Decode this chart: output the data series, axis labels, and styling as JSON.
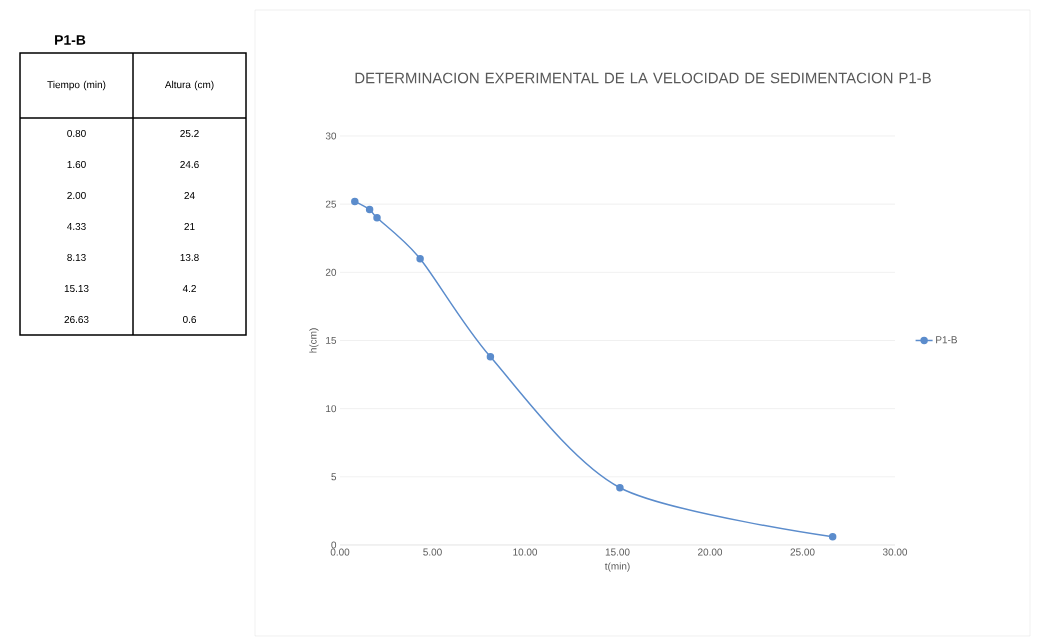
{
  "chart_data": [
    {
      "type": "other",
      "title": "P1-B",
      "annotations": [
        "Tiempo (min)",
        "Altura (cm)",
        "0.80",
        "25.2",
        "1.60",
        "24.6",
        "2.00",
        "24",
        "4.33",
        "21",
        "8.13",
        "13.8",
        "15.13",
        "4.2",
        "26.63",
        "0.6"
      ]
    },
    {
      "type": "line",
      "title": "DETERMINACION EXPERIMENTAL DE LA VELOCIDAD DE SEDIMENTACION P1-B",
      "xlabel": "t(min)",
      "ylabel": "h(cm)",
      "x": [
        0.8,
        1.6,
        2.0,
        4.33,
        8.13,
        15.13,
        26.63
      ],
      "series": [
        {
          "name": "P1-B",
          "color": "#5b8ccc",
          "values": [
            25.2,
            24.6,
            24,
            21,
            13.8,
            4.2,
            0.6
          ]
        }
      ],
      "xlim": [
        0,
        30
      ],
      "ylim": [
        0,
        30
      ],
      "xticks": [
        {
          "value": 0,
          "label": "0.00"
        },
        {
          "value": 5,
          "label": "5.00"
        },
        {
          "value": 10,
          "label": "10.00"
        },
        {
          "value": 15,
          "label": "15.00"
        },
        {
          "value": 20,
          "label": "20.00"
        },
        {
          "value": 25,
          "label": "25.00"
        },
        {
          "value": 30,
          "label": "30.00"
        }
      ],
      "yticks": [
        0,
        5,
        10,
        15,
        20,
        25,
        30
      ],
      "grid": "y",
      "legend": "right",
      "marker": "circle",
      "line_style": "solid"
    }
  ]
}
